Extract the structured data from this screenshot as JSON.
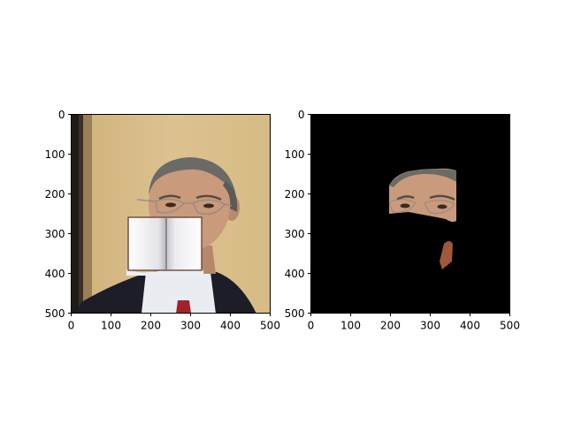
{
  "figure": {
    "background": "#ffffff"
  },
  "chart_data": [
    {
      "type": "image",
      "description_of_content": "",
      "xlim": [
        0,
        500
      ],
      "ylim": [
        500,
        0
      ],
      "x_ticks": [
        0,
        100,
        200,
        300,
        400,
        500
      ],
      "y_ticks": [
        0,
        100,
        200,
        300,
        400,
        500
      ],
      "x_tick_labels": [
        "0",
        "100",
        "200",
        "300",
        "400",
        "500"
      ],
      "y_tick_labels": [
        "0",
        "100",
        "200",
        "300",
        "400",
        "500"
      ],
      "image_colors": {
        "background_wall": "#d9bf8a",
        "door_frame_dark": "#1e1a16",
        "door_frame_mid": "#3a3127",
        "suit": "#1c1d27",
        "shirt": "#e9edf2",
        "tie": "#a3222a",
        "hair": "#6c6a66",
        "skin": "#c99a7c",
        "book_page": "#f2f2f4",
        "book_edge": "#6b4a3a"
      }
    },
    {
      "type": "image",
      "description_of_content": "",
      "xlim": [
        0,
        500
      ],
      "ylim": [
        500,
        0
      ],
      "x_ticks": [
        0,
        100,
        200,
        300,
        400,
        500
      ],
      "y_ticks": [
        0,
        100,
        200,
        300,
        400,
        500
      ],
      "x_tick_labels": [
        "0",
        "100",
        "200",
        "300",
        "400",
        "500"
      ],
      "y_tick_labels": [
        "0",
        "100",
        "200",
        "300",
        "400",
        "500"
      ],
      "image_colors": {
        "background": "#000000",
        "skin": "#c99a7c",
        "hair": "#6c6a66",
        "neck_patch": "#a0583a"
      }
    }
  ]
}
